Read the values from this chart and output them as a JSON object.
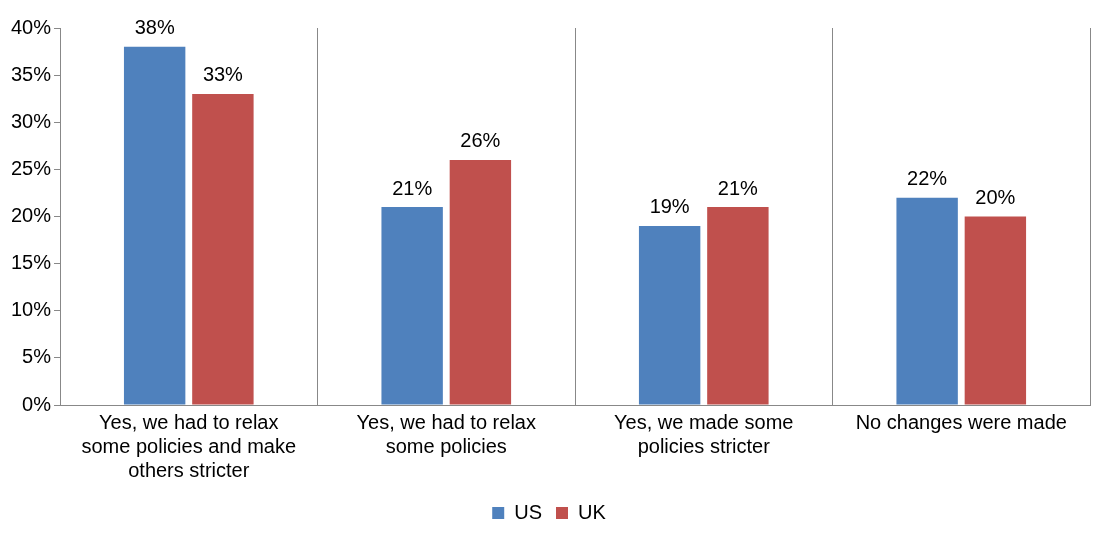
{
  "chart_data": {
    "type": "bar",
    "categories": [
      "Yes, we had to relax some policies and make others stricter",
      "Yes, we had to relax some policies",
      "Yes, we made some policies stricter",
      "No changes were made"
    ],
    "series": [
      {
        "name": "US",
        "color": "#4f81bd",
        "values": [
          38,
          21,
          19,
          22
        ],
        "value_labels": [
          "38%",
          "21%",
          "19%",
          "22%"
        ]
      },
      {
        "name": "UK",
        "color": "#c0504d",
        "values": [
          33,
          26,
          21,
          20
        ],
        "value_labels": [
          "33%",
          "26%",
          "21%",
          "20%"
        ]
      }
    ],
    "ylim": [
      0,
      40
    ],
    "yticks": [
      {
        "value": 0,
        "label": "0%"
      },
      {
        "value": 5,
        "label": "5%"
      },
      {
        "value": 10,
        "label": "10%"
      },
      {
        "value": 15,
        "label": "15%"
      },
      {
        "value": 20,
        "label": "20%"
      },
      {
        "value": 25,
        "label": "25%"
      },
      {
        "value": 30,
        "label": "30%"
      },
      {
        "value": 35,
        "label": "35%"
      },
      {
        "value": 40,
        "label": "40%"
      }
    ],
    "grid": "x",
    "legend": "bottom"
  }
}
